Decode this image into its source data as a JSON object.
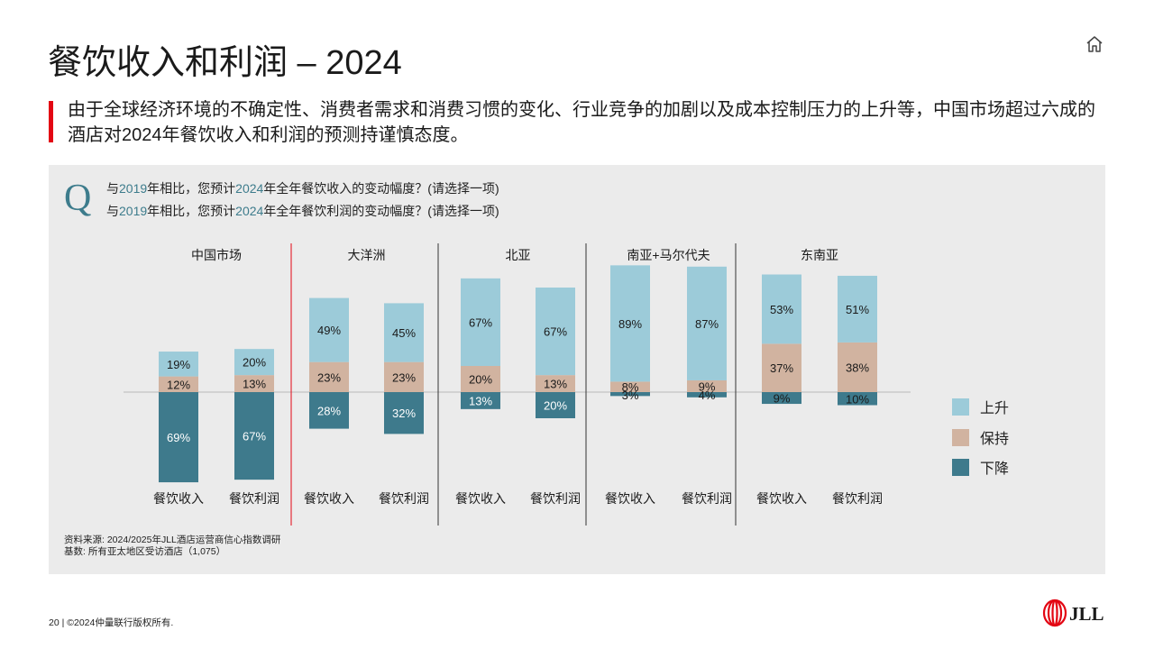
{
  "title": "餐饮收入和利润 – 2024",
  "subtitle": "由于全球经济环境的不确定性、消费者需求和消费习惯的变化、行业竞争的加剧以及成本控制压力的上升等，中国市场超过六成的酒店对2024年餐饮收入和利润的预测持谨慎态度。",
  "question": {
    "icon_letter": "Q",
    "line1": {
      "pre": "与",
      "year1": "2019",
      "mid": "年相比，您预计",
      "year2": "2024",
      "post": "年全年餐饮收入的变动幅度？(请选择一项)"
    },
    "line2": {
      "pre": "与",
      "year1": "2019",
      "mid": "年相比，您预计",
      "year2": "2024",
      "post": "年全年餐饮利润的变动幅度？(请选择一项)"
    }
  },
  "legend": [
    {
      "label": "上升",
      "color": "#9ccbd9"
    },
    {
      "label": "保持",
      "color": "#d1b3a0"
    },
    {
      "label": "下降",
      "color": "#3e7a8c"
    }
  ],
  "source": {
    "line1": "资料来源: 2024/2025年JLL酒店运营商信心指数调研",
    "line2": "基数: 所有亚太地区受访酒店（1,075）"
  },
  "footer": "20 | ©2024仲量联行版权所有.",
  "logo_text": "JLL",
  "colors": {
    "up": "#9ccbd9",
    "hold": "#d1b3a0",
    "down": "#3e7a8c",
    "accent": "#e30613"
  },
  "chart_data": {
    "type": "bar",
    "stacked": true,
    "baseline_between": "下降 (below) and 保持/上升 (above)",
    "groups": [
      {
        "name": "中国市场",
        "bars": [
          {
            "label": "餐饮收入",
            "up": 19,
            "hold": 12,
            "down": 69
          },
          {
            "label": "餐饮利润",
            "up": 20,
            "hold": 13,
            "down": 67
          }
        ]
      },
      {
        "name": "大洋洲",
        "bars": [
          {
            "label": "餐饮收入",
            "up": 49,
            "hold": 23,
            "down": 28
          },
          {
            "label": "餐饮利润",
            "up": 45,
            "hold": 23,
            "down": 32
          }
        ]
      },
      {
        "name": "北亚",
        "bars": [
          {
            "label": "餐饮收入",
            "up": 67,
            "hold": 20,
            "down": 13
          },
          {
            "label": "餐饮利润",
            "up": 67,
            "hold": 13,
            "down": 20
          }
        ]
      },
      {
        "name": "南亚+马尔代夫",
        "bars": [
          {
            "label": "餐饮收入",
            "up": 89,
            "hold": 8,
            "down": 3
          },
          {
            "label": "餐饮利润",
            "up": 87,
            "hold": 9,
            "down": 4
          }
        ]
      },
      {
        "name": "东南亚",
        "bars": [
          {
            "label": "餐饮收入",
            "up": 53,
            "hold": 37,
            "down": 9
          },
          {
            "label": "餐饮利润",
            "up": 51,
            "hold": 38,
            "down": 10
          }
        ]
      }
    ]
  }
}
